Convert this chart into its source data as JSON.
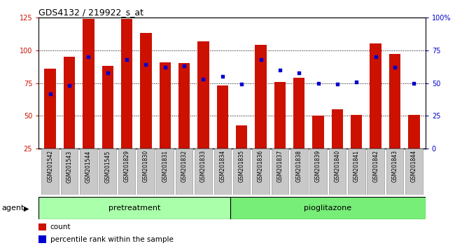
{
  "title": "GDS4132 / 219922_s_at",
  "samples": [
    "GSM201542",
    "GSM201543",
    "GSM201544",
    "GSM201545",
    "GSM201829",
    "GSM201830",
    "GSM201831",
    "GSM201832",
    "GSM201833",
    "GSM201834",
    "GSM201835",
    "GSM201836",
    "GSM201837",
    "GSM201838",
    "GSM201839",
    "GSM201840",
    "GSM201841",
    "GSM201842",
    "GSM201843",
    "GSM201844"
  ],
  "count_values": [
    86,
    95,
    124,
    88,
    124,
    113,
    91,
    90,
    107,
    73,
    43,
    104,
    76,
    79,
    50,
    55,
    51,
    105,
    97,
    51
  ],
  "percentile_values": [
    42,
    48,
    70,
    58,
    68,
    64,
    62,
    63,
    53,
    55,
    49,
    68,
    60,
    58,
    50,
    49,
    51,
    70,
    62,
    50
  ],
  "pretreatment_count": 10,
  "pioglitazone_count": 10,
  "bar_color": "#cc1100",
  "dot_color": "#0000cc",
  "left_axis_color": "#cc1100",
  "right_axis_color": "#0000cc",
  "ylim_left": [
    25,
    125
  ],
  "ylim_right": [
    0,
    100
  ],
  "yticks_left": [
    25,
    50,
    75,
    100,
    125
  ],
  "yticks_right": [
    0,
    25,
    50,
    75,
    100
  ],
  "ytick_labels_right": [
    "0",
    "25",
    "50",
    "75",
    "100%"
  ],
  "agent_label": "agent",
  "group1_label": "pretreatment",
  "group2_label": "pioglitazone",
  "legend_count": "count",
  "legend_percentile": "percentile rank within the sample",
  "grid_color": "#000000",
  "tick_bg_color": "#c8c8c8",
  "group1_bg": "#aaffaa",
  "group2_bg": "#77ee77",
  "bar_width": 0.6
}
